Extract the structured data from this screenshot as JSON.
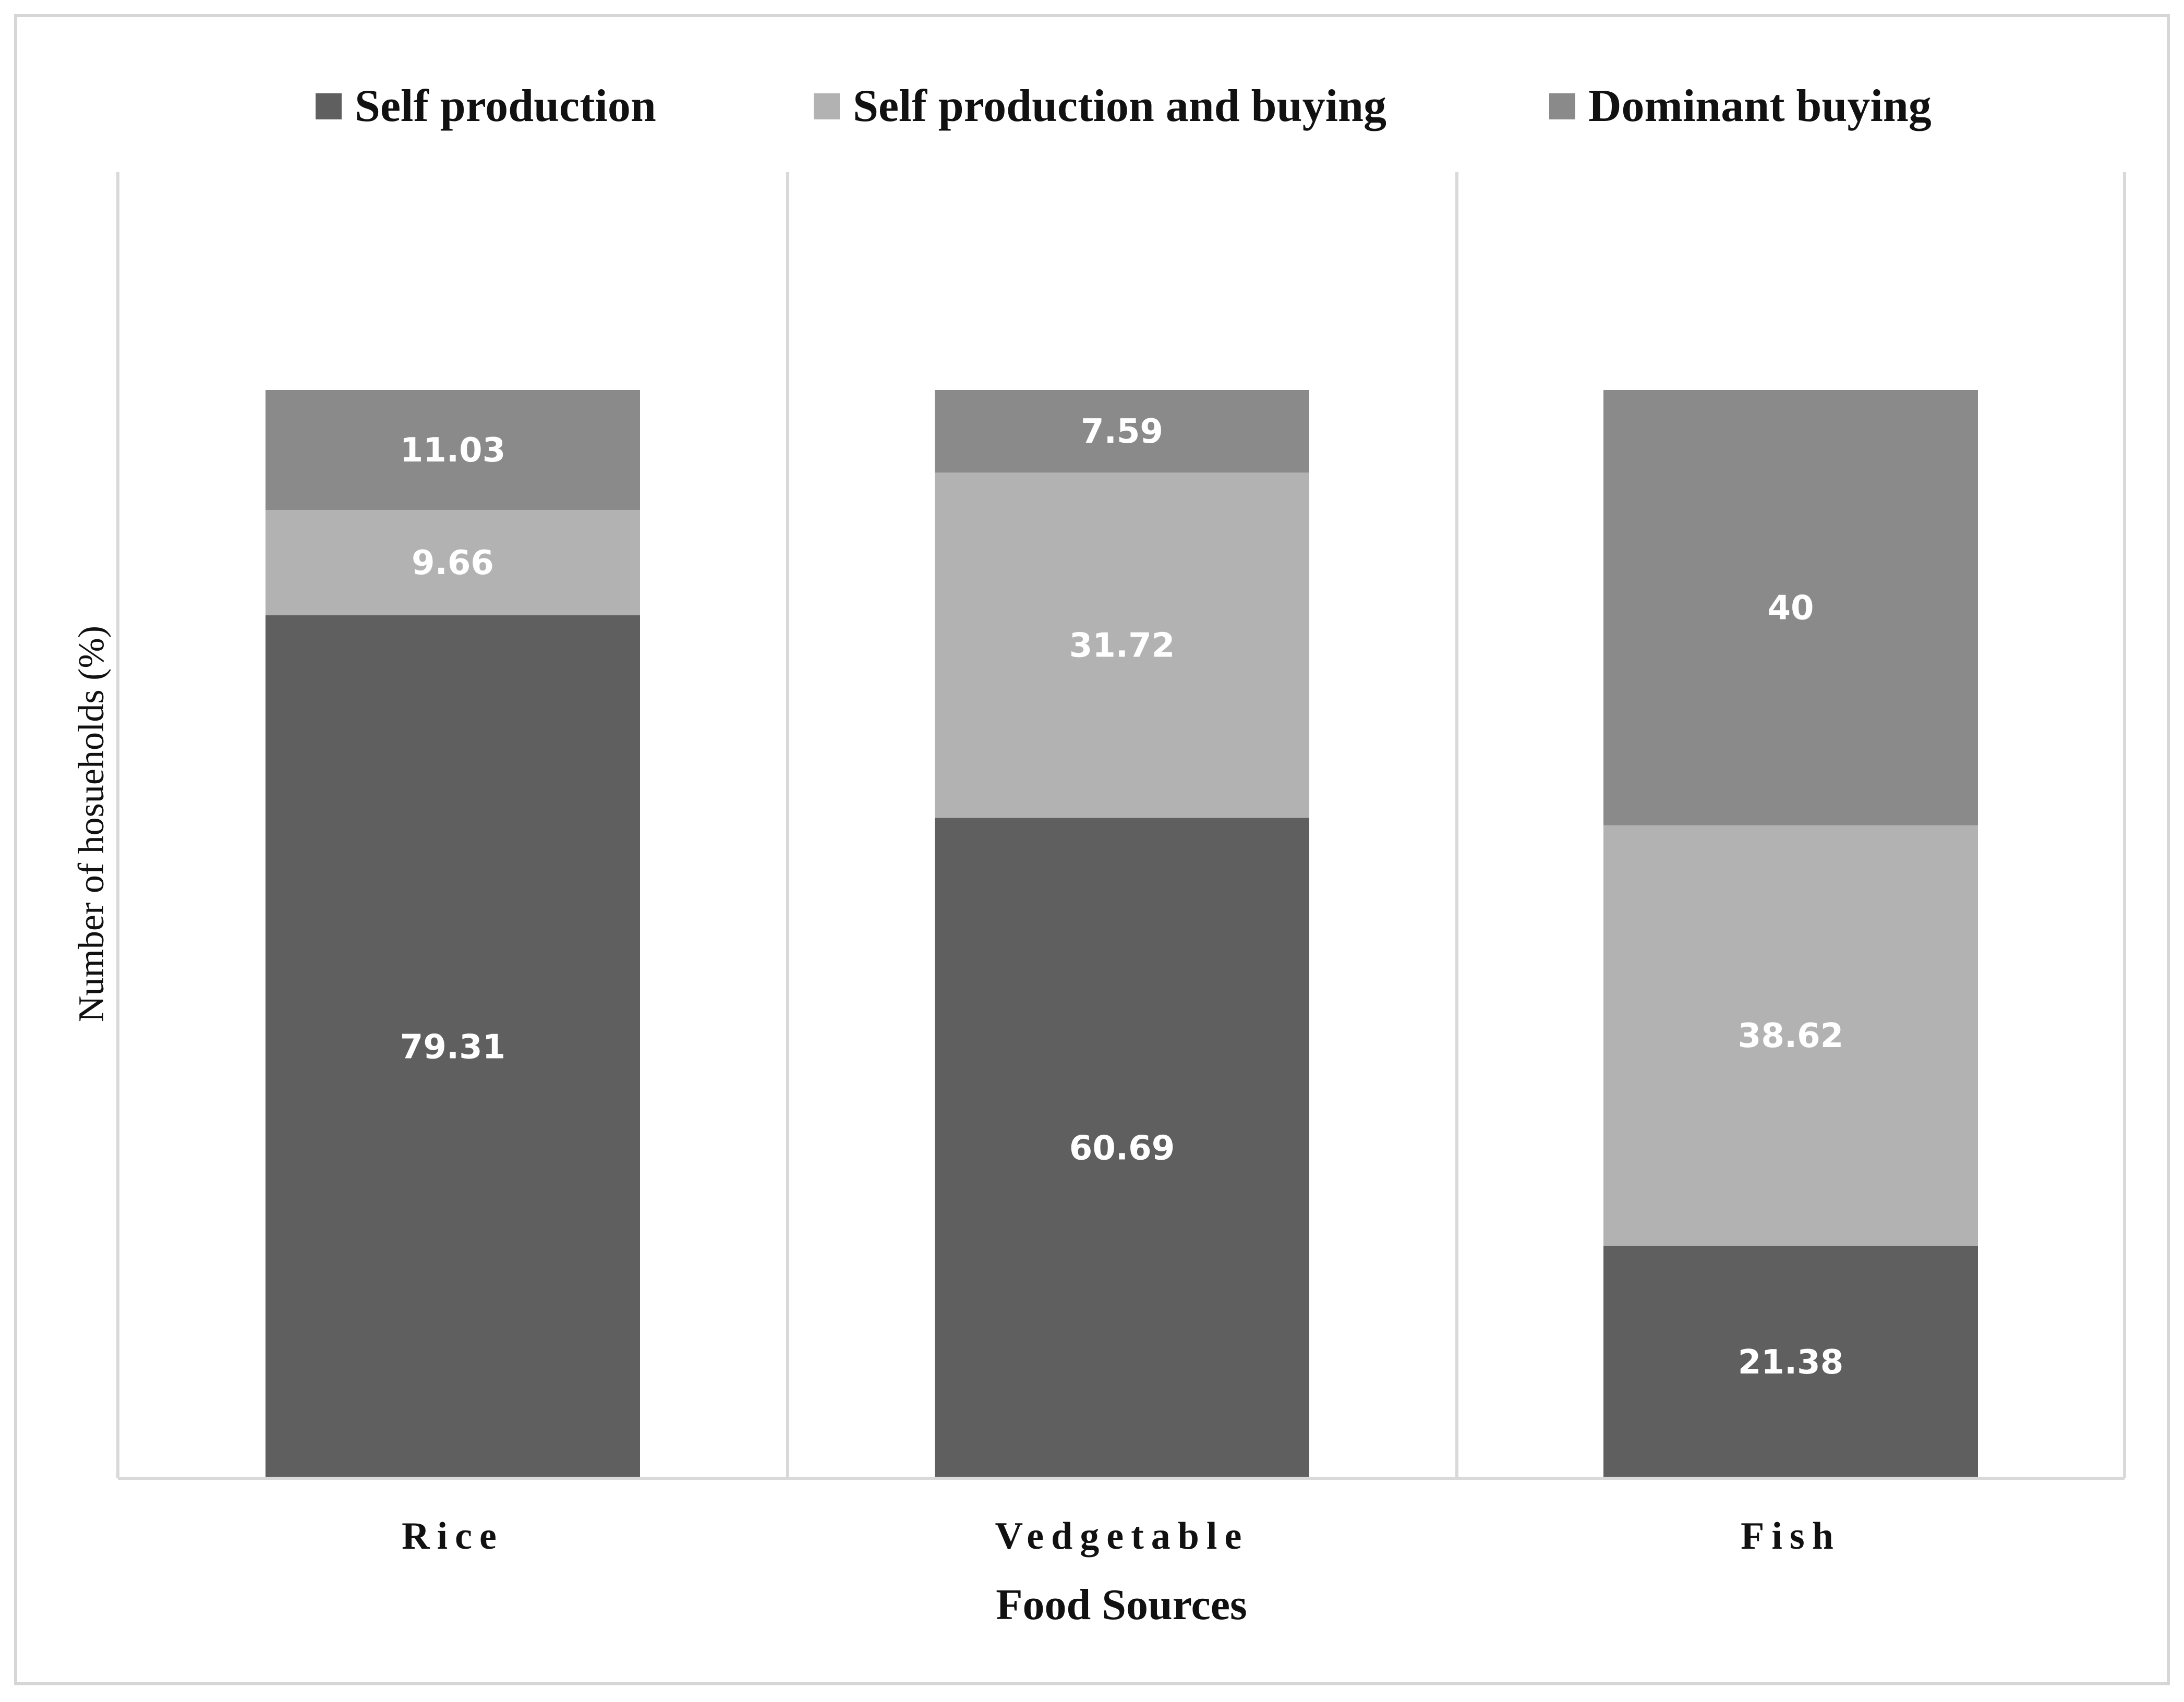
{
  "chart_data": {
    "type": "bar",
    "stacked": true,
    "title": "",
    "xlabel": "Food Sources",
    "ylabel": "Number  of hosueholds (%)",
    "ylim": [
      0,
      100
    ],
    "grid": false,
    "legend_position": "top",
    "categories": [
      "Rice",
      "Vedgetable",
      "Fish"
    ],
    "series": [
      {
        "name": "Self production",
        "color": "#5f5f5f",
        "values": [
          79.31,
          60.69,
          21.38
        ],
        "labels": [
          "79.31",
          "60.69",
          "21.38"
        ]
      },
      {
        "name": "Self production and buying",
        "color": "#b2b2b2",
        "values": [
          9.66,
          31.72,
          38.62
        ],
        "labels": [
          "9.66",
          "31.72",
          "38.62"
        ]
      },
      {
        "name": "Dominant buying",
        "color": "#8a8a8a",
        "values": [
          11.03,
          7.59,
          40
        ],
        "labels": [
          "11.03",
          "7.59",
          "40"
        ]
      }
    ]
  }
}
